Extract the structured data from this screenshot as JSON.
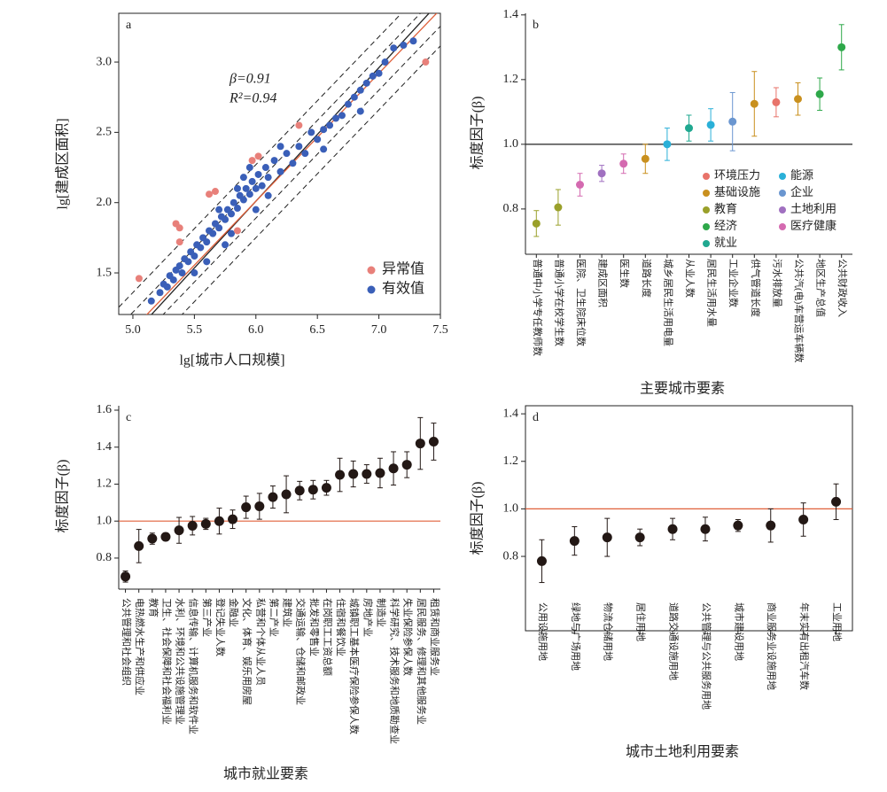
{
  "chart_data": [
    {
      "type": "scatter",
      "title": "a",
      "xlabel": "lg[城市人口规模]",
      "ylabel": "lg[建成区面积]",
      "annotations": [
        "β=0.91",
        "R²=0.94"
      ],
      "xlim": [
        4.885,
        7.5
      ],
      "xticks": [
        {
          "value": 5,
          "label": "5.0"
        },
        5.5,
        {
          "value": 6,
          "label": "6.0"
        },
        6.5,
        {
          "value": 7,
          "label": "7.0"
        },
        7.5
      ],
      "ylim": [
        1.204,
        3.347
      ],
      "yticks": [
        1.5,
        {
          "value": 2,
          "label": "2.0"
        },
        2.5,
        {
          "value": 3,
          "label": "3.0"
        }
      ],
      "legend": "lower right",
      "lines": [
        {
          "slope": 0.91,
          "intercept": -3.71,
          "color": "#222222",
          "dashed": true
        },
        {
          "slope": 0.91,
          "intercept": -3.57,
          "color": "#222222",
          "dashed": true
        },
        {
          "slope": 0.91,
          "intercept": -3.33,
          "color": "#222222",
          "dashed": true
        },
        {
          "slope": 0.91,
          "intercept": -3.19,
          "color": "#222222",
          "dashed": true
        },
        {
          "slope": 0.95,
          "intercept": -3.69,
          "color": "#222222",
          "dashed": false
        },
        {
          "slope": 0.91,
          "intercept": -3.45,
          "color": "#e0603a",
          "dashed": false
        }
      ],
      "series": [
        {
          "name": "异常值",
          "color": "#e8807a",
          "x": [
            5.05,
            5.35,
            5.38,
            5.38,
            5.62,
            5.67,
            5.85,
            5.97,
            6.02,
            6.35,
            7.38
          ],
          "values": [
            1.46,
            1.85,
            1.82,
            1.72,
            2.06,
            2.08,
            1.8,
            2.3,
            2.33,
            2.55,
            3.0
          ]
        },
        {
          "name": "有效值",
          "color": "#3a5fb8",
          "x": [
            5.15,
            5.22,
            5.25,
            5.28,
            5.3,
            5.33,
            5.35,
            5.38,
            5.4,
            5.42,
            5.45,
            5.47,
            5.5,
            5.52,
            5.55,
            5.57,
            5.6,
            5.62,
            5.65,
            5.67,
            5.7,
            5.72,
            5.75,
            5.77,
            5.8,
            5.82,
            5.85,
            5.87,
            5.9,
            5.92,
            5.95,
            5.97,
            6.0,
            6.02,
            6.05,
            6.08,
            6.1,
            6.15,
            6.2,
            6.25,
            6.3,
            6.35,
            6.4,
            6.45,
            6.5,
            6.55,
            6.6,
            6.65,
            6.7,
            6.75,
            6.8,
            6.85,
            6.9,
            6.95,
            7.0,
            7.05,
            7.12,
            7.2,
            7.28,
            5.6,
            5.7,
            5.8,
            5.9,
            6.0,
            6.1,
            5.5,
            5.95,
            6.2,
            5.75,
            5.85,
            6.55,
            6.85
          ],
          "values": [
            1.3,
            1.36,
            1.42,
            1.4,
            1.48,
            1.45,
            1.52,
            1.55,
            1.5,
            1.6,
            1.58,
            1.65,
            1.62,
            1.7,
            1.68,
            1.75,
            1.72,
            1.8,
            1.78,
            1.85,
            1.82,
            1.9,
            1.88,
            1.95,
            1.92,
            2.0,
            1.96,
            2.05,
            2.02,
            2.1,
            2.06,
            2.15,
            2.1,
            2.2,
            2.12,
            2.25,
            2.18,
            2.3,
            2.22,
            2.35,
            2.28,
            2.4,
            2.35,
            2.5,
            2.45,
            2.52,
            2.55,
            2.6,
            2.62,
            2.7,
            2.75,
            2.8,
            2.85,
            2.9,
            2.92,
            3.0,
            3.1,
            3.12,
            3.15,
            1.58,
            1.95,
            1.78,
            2.18,
            1.95,
            2.05,
            1.5,
            2.25,
            2.4,
            1.7,
            2.1,
            2.38,
            2.65
          ]
        }
      ]
    },
    {
      "type": "errorbar",
      "title": "b",
      "xlabel": "主要城市要素",
      "ylabel": "标度因子(β)",
      "categories": [
        "普通中小学专任教师数",
        "普通小学在校学生数",
        "医院、卫生院床位数",
        "建成区面积",
        "医生数",
        "道路长度",
        "城乡居民生活用电量",
        "从业人数",
        "居民生活用水量",
        "工业企业数",
        "供气管道长度",
        "污水排放量",
        "公共汽(电)车营运车辆数",
        "地区生产总值",
        "公共财政收入"
      ],
      "ylim": [
        0.66,
        1.405
      ],
      "yticks": [
        0.8,
        {
          "value": 1,
          "label": "1.0"
        },
        1.2,
        1.4
      ],
      "reference_line": {
        "value": 1,
        "color": "#222222"
      },
      "legend": "lower right",
      "series": [
        {
          "name": "环境压力",
          "color": "#e8736a",
          "values": [
            null,
            null,
            null,
            null,
            null,
            null,
            null,
            null,
            null,
            null,
            null,
            1.13,
            null,
            null,
            null
          ],
          "errors": [
            null,
            null,
            null,
            null,
            null,
            null,
            null,
            null,
            null,
            null,
            null,
            0.045,
            null,
            null,
            null
          ]
        },
        {
          "name": "能源",
          "color": "#2ab0d8",
          "values": [
            null,
            null,
            null,
            null,
            null,
            null,
            1.0,
            null,
            1.06,
            null,
            null,
            null,
            null,
            null,
            null
          ],
          "errors": [
            null,
            null,
            null,
            null,
            null,
            null,
            0.05,
            null,
            0.05,
            null,
            null,
            null,
            null,
            null,
            null
          ]
        },
        {
          "name": "基础设施",
          "color": "#c9901e",
          "values": [
            null,
            null,
            null,
            null,
            null,
            0.955,
            null,
            null,
            null,
            null,
            1.125,
            null,
            1.14,
            null,
            null
          ],
          "errors": [
            null,
            null,
            null,
            null,
            null,
            0.045,
            null,
            null,
            null,
            null,
            0.1,
            null,
            0.05,
            null,
            null
          ]
        },
        {
          "name": "企业",
          "color": "#6a96d0",
          "values": [
            null,
            null,
            null,
            null,
            null,
            null,
            null,
            null,
            null,
            1.07,
            null,
            null,
            null,
            null,
            null
          ],
          "errors": [
            null,
            null,
            null,
            null,
            null,
            null,
            null,
            null,
            null,
            0.09,
            null,
            null,
            null,
            null,
            null
          ]
        },
        {
          "name": "教育",
          "color": "#9aa02a",
          "values": [
            0.755,
            0.805,
            null,
            null,
            null,
            null,
            null,
            null,
            null,
            null,
            null,
            null,
            null,
            null,
            null
          ],
          "errors": [
            0.04,
            0.055,
            null,
            null,
            null,
            null,
            null,
            null,
            null,
            null,
            null,
            null,
            null,
            null,
            null
          ]
        },
        {
          "name": "土地利用",
          "color": "#a070c0",
          "values": [
            null,
            null,
            null,
            0.91,
            null,
            null,
            null,
            null,
            null,
            null,
            null,
            null,
            null,
            null,
            null
          ],
          "errors": [
            null,
            null,
            null,
            0.025,
            null,
            null,
            null,
            null,
            null,
            null,
            null,
            null,
            null,
            null,
            null
          ]
        },
        {
          "name": "经济",
          "color": "#2ea84a",
          "values": [
            null,
            null,
            null,
            null,
            null,
            null,
            null,
            null,
            null,
            null,
            null,
            null,
            null,
            1.155,
            1.3
          ],
          "errors": [
            null,
            null,
            null,
            null,
            null,
            null,
            null,
            null,
            null,
            null,
            null,
            null,
            null,
            0.05,
            0.07
          ]
        },
        {
          "name": "医疗健康",
          "color": "#d46ab0",
          "values": [
            null,
            null,
            0.875,
            null,
            0.94,
            null,
            null,
            null,
            null,
            null,
            null,
            null,
            null,
            null,
            null
          ],
          "errors": [
            null,
            null,
            0.035,
            null,
            0.03,
            null,
            null,
            null,
            null,
            null,
            null,
            null,
            null,
            null,
            null
          ]
        },
        {
          "name": "就业",
          "color": "#20a890",
          "values": [
            null,
            null,
            null,
            null,
            null,
            null,
            null,
            1.05,
            null,
            null,
            null,
            null,
            null,
            null,
            null
          ],
          "errors": [
            null,
            null,
            null,
            null,
            null,
            null,
            null,
            0.04,
            null,
            null,
            null,
            null,
            null,
            null,
            null
          ]
        }
      ]
    },
    {
      "type": "errorbar",
      "title": "c",
      "xlabel": "城市就业要素",
      "ylabel": "标度因子(β)",
      "categories": [
        "公共管理和社会组织",
        "电热燃水生产和供应业",
        "教育",
        "卫生、社会保障和社会福利业",
        "水利、环境和公共设施管理业",
        "信息传输、计算机服务和软件业",
        "第三产业",
        "登记失业人数",
        "金融业",
        "文化、体育、娱乐用房屋",
        "私营和个体从业人员",
        "第二产业",
        "建筑业",
        "交通运输、仓储和邮政业",
        "批发和零售业",
        "在岗职工工资总额",
        "住宿和餐饮业",
        "城镇职工基本医疗保险参保人数",
        "房地产业",
        "制造业",
        "科学研究、技术服务和地质勘查业",
        "失业保险参保人数",
        "居民服务、修理和其他服务业",
        "租赁和商业服务业"
      ],
      "ylim": [
        0.632,
        1.624
      ],
      "yticks": [
        0.8,
        {
          "value": 1,
          "label": "1.0"
        },
        1.2,
        1.4,
        1.6
      ],
      "reference_line": {
        "value": 1,
        "color": "#e0603a"
      },
      "color": "#231815",
      "values": [
        0.7,
        0.865,
        0.905,
        0.915,
        0.95,
        0.975,
        0.985,
        1.0,
        1.01,
        1.075,
        1.08,
        1.13,
        1.145,
        1.165,
        1.17,
        1.18,
        1.25,
        1.255,
        1.255,
        1.26,
        1.285,
        1.305,
        1.42,
        1.43
      ],
      "errors": [
        0.03,
        0.09,
        0.03,
        0.02,
        0.07,
        0.05,
        0.03,
        0.07,
        0.05,
        0.06,
        0.07,
        0.06,
        0.1,
        0.05,
        0.05,
        0.04,
        0.09,
        0.07,
        0.05,
        0.08,
        0.09,
        0.07,
        0.14,
        0.1
      ]
    },
    {
      "type": "errorbar",
      "title": "d",
      "xlabel": "城市土地利用要素",
      "ylabel": "标度因子(β)",
      "categories": [
        "公用设施用地",
        "绿地与广场用地",
        "物流仓储用地",
        "居住用地",
        "道路交通设施用地",
        "公共管理与公共服务用地",
        "城市建设用地",
        "商业服务业设施用地",
        "年末实有出租汽车数",
        "工业用地"
      ],
      "ylim": [
        0.487,
        1.434
      ],
      "yticks": [
        0.8,
        {
          "value": 1,
          "label": "1.0"
        },
        1.2,
        1.4
      ],
      "reference_line": {
        "value": 1,
        "color": "#e0603a"
      },
      "color": "#231815",
      "values": [
        0.78,
        0.865,
        0.88,
        0.88,
        0.915,
        0.915,
        0.93,
        0.93,
        0.955,
        1.03
      ],
      "errors": [
        0.09,
        0.06,
        0.08,
        0.035,
        0.045,
        0.05,
        0.025,
        0.07,
        0.07,
        0.075
      ]
    }
  ]
}
